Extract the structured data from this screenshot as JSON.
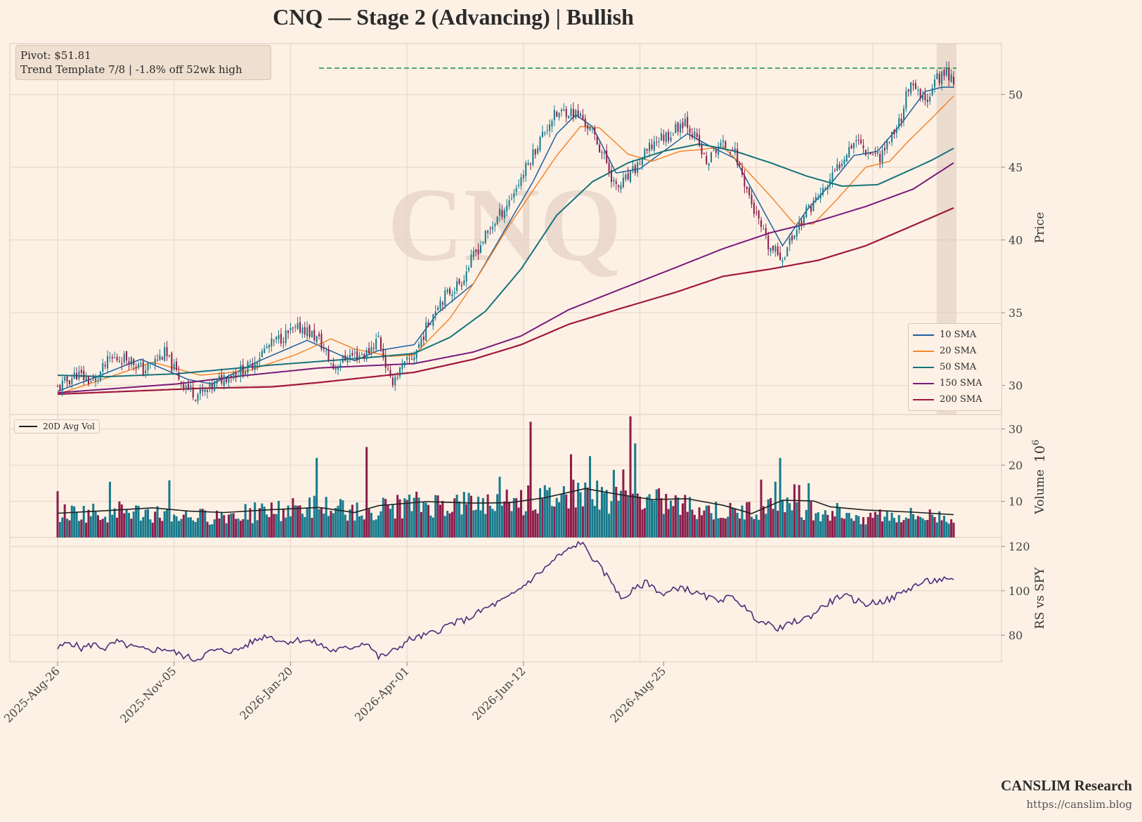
{
  "header": {
    "title": "CNQ  —  Stage 2 (Advancing)  |  Bullish"
  },
  "info_box": {
    "pivot_label": "Pivot: $51.81",
    "trend_label": "Trend Template 7/8  |  -1.8% off 52wk high"
  },
  "watermark": "CNQ",
  "footer": {
    "brand": "CANSLIM Research",
    "url": "https://canslim.blog"
  },
  "colors": {
    "background": "#fdf1e6",
    "grid": "#e9d8cb",
    "up_candle": "#177a8c",
    "down_candle": "#8c1d4a",
    "sma10": "#1f5f9e",
    "sma20": "#f4862a",
    "sma50": "#16727a",
    "sma150": "#7a1a7a",
    "sma200": "#a0173c",
    "pivot_line": "#1a8a4a",
    "rs_line": "#4b2c7a",
    "avg_vol": "#222222"
  },
  "chart_data": [
    {
      "type": "candlestick",
      "panel": "price",
      "ylabel": "Price",
      "ylim": [
        28,
        53.5
      ],
      "yticks": [
        30,
        35,
        40,
        45,
        50
      ],
      "xticks": [
        "2025-Aug-26",
        "2025-Nov-05",
        "2026-Jan-20",
        "2026-Apr-01",
        "2026-Jun-12",
        "2026-Aug-25"
      ],
      "pivot": 51.81,
      "price_path": [
        [
          0,
          29.8
        ],
        [
          8,
          30.8
        ],
        [
          15,
          30.2
        ],
        [
          22,
          31.8
        ],
        [
          30,
          31.9
        ],
        [
          36,
          31.0
        ],
        [
          45,
          32.2
        ],
        [
          52,
          30.3
        ],
        [
          58,
          29.4
        ],
        [
          62,
          29.5
        ],
        [
          70,
          30.6
        ],
        [
          80,
          31.2
        ],
        [
          88,
          32.6
        ],
        [
          95,
          33.4
        ],
        [
          103,
          34.0
        ],
        [
          110,
          33.1
        ],
        [
          116,
          31.2
        ],
        [
          122,
          32.0
        ],
        [
          130,
          32.2
        ],
        [
          135,
          33.3
        ],
        [
          140,
          30.2
        ],
        [
          145,
          31.2
        ],
        [
          150,
          32.1
        ],
        [
          155,
          33.9
        ],
        [
          160,
          35.7
        ],
        [
          170,
          37.2
        ],
        [
          175,
          38.9
        ],
        [
          182,
          40.8
        ],
        [
          190,
          42.7
        ],
        [
          196,
          44.6
        ],
        [
          202,
          46.6
        ],
        [
          208,
          48.4
        ],
        [
          214,
          48.9
        ],
        [
          220,
          48.5
        ],
        [
          226,
          47.1
        ],
        [
          231,
          45.3
        ],
        [
          235,
          43.5
        ],
        [
          241,
          44.4
        ],
        [
          246,
          45.6
        ],
        [
          252,
          46.9
        ],
        [
          258,
          47.3
        ],
        [
          264,
          48.3
        ],
        [
          269,
          46.8
        ],
        [
          273,
          45.2
        ],
        [
          278,
          46.5
        ],
        [
          284,
          46.4
        ],
        [
          289,
          44.0
        ],
        [
          293,
          42.0
        ],
        [
          299,
          39.5
        ],
        [
          305,
          38.8
        ],
        [
          310,
          40.5
        ],
        [
          316,
          42.2
        ],
        [
          322,
          43.3
        ],
        [
          327,
          44.6
        ],
        [
          332,
          46.2
        ],
        [
          336,
          47.0
        ],
        [
          340,
          46.2
        ],
        [
          346,
          45.8
        ],
        [
          350,
          46.9
        ],
        [
          355,
          48.5
        ],
        [
          358,
          50.6
        ],
        [
          362,
          50.0
        ],
        [
          365,
          49.4
        ],
        [
          368,
          50.7
        ],
        [
          371,
          51.2
        ],
        [
          374,
          51.6
        ],
        [
          377,
          51.0
        ]
      ],
      "sma": {
        "10 SMA": [
          [
            0,
            29.6
          ],
          [
            15,
            30.5
          ],
          [
            35,
            31.8
          ],
          [
            55,
            30.4
          ],
          [
            65,
            30.1
          ],
          [
            85,
            31.7
          ],
          [
            105,
            33.1
          ],
          [
            120,
            32.0
          ],
          [
            125,
            31.7
          ],
          [
            135,
            32.4
          ],
          [
            150,
            32.8
          ],
          [
            160,
            35.0
          ],
          [
            175,
            37.0
          ],
          [
            200,
            44.0
          ],
          [
            210,
            47.3
          ],
          [
            218,
            48.6
          ],
          [
            225,
            47.8
          ],
          [
            235,
            44.6
          ],
          [
            245,
            44.9
          ],
          [
            255,
            46.1
          ],
          [
            265,
            47.3
          ],
          [
            275,
            46.4
          ],
          [
            285,
            45.6
          ],
          [
            295,
            42.6
          ],
          [
            305,
            39.6
          ],
          [
            315,
            42.0
          ],
          [
            325,
            43.8
          ],
          [
            335,
            45.8
          ],
          [
            345,
            46.1
          ],
          [
            355,
            48.0
          ],
          [
            365,
            50.2
          ],
          [
            372,
            50.5
          ],
          [
            377,
            50.5
          ]
        ],
        "20 SMA": [
          [
            0,
            29.4
          ],
          [
            15,
            30.2
          ],
          [
            40,
            31.6
          ],
          [
            60,
            30.7
          ],
          [
            80,
            31.0
          ],
          [
            100,
            32.1
          ],
          [
            115,
            33.2
          ],
          [
            125,
            32.5
          ],
          [
            140,
            32.0
          ],
          [
            150,
            32.1
          ],
          [
            165,
            34.6
          ],
          [
            175,
            37.0
          ],
          [
            190,
            41.0
          ],
          [
            210,
            45.8
          ],
          [
            220,
            47.8
          ],
          [
            228,
            47.7
          ],
          [
            240,
            45.9
          ],
          [
            250,
            45.4
          ],
          [
            262,
            46.1
          ],
          [
            270,
            46.2
          ],
          [
            280,
            46.4
          ],
          [
            287,
            45.3
          ],
          [
            300,
            43.0
          ],
          [
            310,
            41.1
          ],
          [
            318,
            41.1
          ],
          [
            328,
            42.8
          ],
          [
            340,
            45.0
          ],
          [
            350,
            45.4
          ],
          [
            358,
            46.8
          ],
          [
            368,
            48.4
          ],
          [
            377,
            49.9
          ]
        ],
        "50 SMA": [
          [
            0,
            30.7
          ],
          [
            20,
            30.6
          ],
          [
            50,
            30.8
          ],
          [
            90,
            31.4
          ],
          [
            130,
            31.9
          ],
          [
            150,
            32.2
          ],
          [
            165,
            33.3
          ],
          [
            180,
            35.1
          ],
          [
            195,
            38.0
          ],
          [
            210,
            41.7
          ],
          [
            225,
            44.0
          ],
          [
            240,
            45.3
          ],
          [
            255,
            46.1
          ],
          [
            270,
            46.6
          ],
          [
            285,
            46.1
          ],
          [
            300,
            45.3
          ],
          [
            315,
            44.4
          ],
          [
            330,
            43.7
          ],
          [
            345,
            43.8
          ],
          [
            360,
            44.9
          ],
          [
            368,
            45.5
          ],
          [
            377,
            46.3
          ]
        ],
        "150 SMA": [
          [
            0,
            29.5
          ],
          [
            25,
            29.8
          ],
          [
            50,
            30.1
          ],
          [
            80,
            30.7
          ],
          [
            110,
            31.2
          ],
          [
            150,
            31.5
          ],
          [
            175,
            32.3
          ],
          [
            195,
            33.4
          ],
          [
            215,
            35.2
          ],
          [
            235,
            36.5
          ],
          [
            260,
            38.1
          ],
          [
            280,
            39.4
          ],
          [
            300,
            40.5
          ],
          [
            320,
            41.3
          ],
          [
            340,
            42.3
          ],
          [
            360,
            43.5
          ],
          [
            377,
            45.3
          ]
        ],
        "200 SMA": [
          [
            0,
            29.4
          ],
          [
            30,
            29.6
          ],
          [
            60,
            29.8
          ],
          [
            90,
            29.9
          ],
          [
            110,
            30.2
          ],
          [
            150,
            30.9
          ],
          [
            175,
            31.8
          ],
          [
            195,
            32.8
          ],
          [
            215,
            34.2
          ],
          [
            235,
            35.2
          ],
          [
            260,
            36.4
          ],
          [
            280,
            37.5
          ],
          [
            300,
            38.0
          ],
          [
            320,
            38.6
          ],
          [
            340,
            39.6
          ],
          [
            360,
            41.0
          ],
          [
            377,
            42.2
          ]
        ]
      },
      "legend": [
        "10 SMA",
        "20 SMA",
        "50 SMA",
        "150 SMA",
        "200 SMA"
      ],
      "legend_position": "lower right"
    },
    {
      "type": "bar",
      "panel": "volume",
      "ylabel": "Volume",
      "unit_label": "10^6",
      "ylim": [
        0,
        34
      ],
      "yticks": [
        10,
        20,
        30
      ],
      "legend": [
        "20D Avg Vol"
      ],
      "legend_position": "upper left",
      "volume_base": [
        [
          0,
          7
        ],
        [
          30,
          7.5
        ],
        [
          60,
          6
        ],
        [
          80,
          7
        ],
        [
          110,
          9
        ],
        [
          130,
          8
        ],
        [
          150,
          9.5
        ],
        [
          180,
          10
        ],
        [
          205,
          11
        ],
        [
          220,
          13
        ],
        [
          235,
          11
        ],
        [
          255,
          10
        ],
        [
          275,
          8
        ],
        [
          285,
          7
        ],
        [
          300,
          9.5
        ],
        [
          320,
          8
        ],
        [
          340,
          6.5
        ],
        [
          377,
          6
        ]
      ],
      "spikes": [
        [
          0,
          12.8
        ],
        [
          22,
          15.4
        ],
        [
          47,
          15.8
        ],
        [
          109,
          22
        ],
        [
          130,
          25
        ],
        [
          186,
          16.8
        ],
        [
          199,
          32
        ],
        [
          216,
          23
        ],
        [
          224,
          22.5
        ],
        [
          234,
          18.7
        ],
        [
          238,
          18.8
        ],
        [
          241,
          33.5
        ],
        [
          243,
          26
        ],
        [
          296,
          16
        ],
        [
          302,
          15.4
        ],
        [
          304,
          22
        ],
        [
          310,
          14.7
        ],
        [
          312,
          14.5
        ],
        [
          316,
          15
        ]
      ],
      "avg_vol": [
        [
          0,
          6.7
        ],
        [
          20,
          7.4
        ],
        [
          40,
          8.2
        ],
        [
          55,
          7.3
        ],
        [
          70,
          6.9
        ],
        [
          90,
          7.7
        ],
        [
          110,
          8.3
        ],
        [
          125,
          6.9
        ],
        [
          135,
          8.8
        ],
        [
          155,
          9.9
        ],
        [
          175,
          9.5
        ],
        [
          190,
          9.6
        ],
        [
          205,
          11.0
        ],
        [
          222,
          13.5
        ],
        [
          235,
          12.0
        ],
        [
          250,
          10.5
        ],
        [
          265,
          10.7
        ],
        [
          280,
          8.9
        ],
        [
          292,
          6.6
        ],
        [
          305,
          10.3
        ],
        [
          318,
          10.1
        ],
        [
          325,
          8.5
        ],
        [
          340,
          7.6
        ],
        [
          360,
          7.0
        ],
        [
          377,
          6.3
        ]
      ]
    },
    {
      "type": "line",
      "panel": "rs",
      "ylabel": "RS vs SPY",
      "ylim": [
        68,
        124
      ],
      "yticks": [
        80,
        100,
        120
      ],
      "series": [
        {
          "points": [
            [
              0,
              74
            ],
            [
              5,
              77
            ],
            [
              10,
              74
            ],
            [
              15,
              76
            ],
            [
              20,
              74
            ],
            [
              25,
              77
            ],
            [
              30,
              75
            ],
            [
              38,
              73
            ],
            [
              45,
              74
            ],
            [
              52,
              71
            ],
            [
              58,
              69
            ],
            [
              65,
              73
            ],
            [
              75,
              73
            ],
            [
              82,
              77
            ],
            [
              88,
              80
            ],
            [
              95,
              77
            ],
            [
              103,
              78
            ],
            [
              110,
              76
            ],
            [
              115,
              73
            ],
            [
              122,
              74
            ],
            [
              130,
              77
            ],
            [
              135,
              70
            ],
            [
              140,
              72
            ],
            [
              148,
              78
            ],
            [
              155,
              80
            ],
            [
              160,
              82
            ],
            [
              165,
              85
            ],
            [
              172,
              87
            ],
            [
              180,
              92
            ],
            [
              190,
              97
            ],
            [
              198,
              104
            ],
            [
              205,
              110
            ],
            [
              210,
              115
            ],
            [
              216,
              119
            ],
            [
              220,
              122
            ],
            [
              225,
              115
            ],
            [
              230,
              108
            ],
            [
              234,
              103
            ],
            [
              237,
              96
            ],
            [
              242,
              100
            ],
            [
              248,
              104
            ],
            [
              255,
              98
            ],
            [
              262,
              102
            ],
            [
              268,
              99
            ],
            [
              276,
              96
            ],
            [
              285,
              97
            ],
            [
              292,
              89
            ],
            [
              298,
              85
            ],
            [
              304,
              83
            ],
            [
              310,
              86
            ],
            [
              316,
              88
            ],
            [
              322,
              93
            ],
            [
              330,
              98
            ],
            [
              340,
              94
            ],
            [
              350,
              96
            ],
            [
              360,
              102
            ],
            [
              365,
              104
            ],
            [
              372,
              105
            ],
            [
              377,
              104
            ]
          ]
        }
      ]
    }
  ]
}
